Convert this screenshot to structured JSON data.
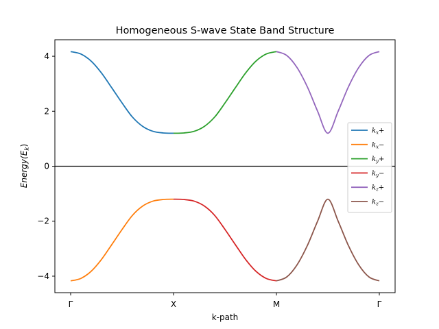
{
  "chart_data": {
    "type": "line",
    "title": "Homogeneous S-wave State Band Structure",
    "xlabel": "k-path",
    "ylabel": "Energy(E",
    "ylabel_sub": "k",
    "ylabel_close": ")",
    "xlim": [
      0,
      3
    ],
    "ylim": [
      -4.6,
      4.6
    ],
    "yticks": [
      -4,
      -2,
      0,
      2,
      4
    ],
    "ytick_labels": [
      "−4",
      "−2",
      "0",
      "2",
      "4"
    ],
    "xticks": [
      0,
      1,
      2,
      3
    ],
    "xtick_labels": [
      "Γ",
      "X",
      "M",
      "Γ"
    ],
    "zero_line": true,
    "legend_position": "center-right",
    "series": [
      {
        "name": "kx+",
        "legend_base": "k",
        "legend_sub": "x",
        "legend_sign": "+",
        "color": "#1f77b4",
        "x": [
          0,
          0.1,
          0.2,
          0.3,
          0.4,
          0.5,
          0.6,
          0.7,
          0.8,
          0.9,
          1.0
        ],
        "y": [
          4.17,
          4.08,
          3.82,
          3.39,
          2.85,
          2.3,
          1.79,
          1.45,
          1.27,
          1.21,
          1.2
        ]
      },
      {
        "name": "kx-",
        "legend_base": "k",
        "legend_sub": "x",
        "legend_sign": "−",
        "color": "#ff7f0e",
        "x": [
          0,
          0.1,
          0.2,
          0.3,
          0.4,
          0.5,
          0.6,
          0.7,
          0.8,
          0.9,
          1.0
        ],
        "y": [
          -4.17,
          -4.08,
          -3.82,
          -3.39,
          -2.85,
          -2.3,
          -1.79,
          -1.45,
          -1.27,
          -1.21,
          -1.2
        ]
      },
      {
        "name": "ky+",
        "legend_base": "k",
        "legend_sub": "y",
        "legend_sign": "+",
        "color": "#2ca02c",
        "x": [
          1.0,
          1.1,
          1.2,
          1.3,
          1.4,
          1.5,
          1.6,
          1.7,
          1.8,
          1.9,
          2.0
        ],
        "y": [
          1.2,
          1.21,
          1.27,
          1.45,
          1.79,
          2.3,
          2.85,
          3.39,
          3.82,
          4.08,
          4.17
        ]
      },
      {
        "name": "ky-",
        "legend_base": "k",
        "legend_sub": "y",
        "legend_sign": "−",
        "color": "#d62728",
        "x": [
          1.0,
          1.1,
          1.2,
          1.3,
          1.4,
          1.5,
          1.6,
          1.7,
          1.8,
          1.9,
          2.0
        ],
        "y": [
          -1.2,
          -1.21,
          -1.27,
          -1.45,
          -1.79,
          -2.3,
          -2.85,
          -3.39,
          -3.82,
          -4.08,
          -4.17
        ]
      },
      {
        "name": "kz+",
        "legend_base": "k",
        "legend_sub": "z",
        "legend_sign": "+",
        "color": "#9467bd",
        "x": [
          2.0,
          2.1,
          2.2,
          2.3,
          2.4,
          2.5,
          2.6,
          2.7,
          2.8,
          2.9,
          3.0
        ],
        "y": [
          4.17,
          4.03,
          3.59,
          2.89,
          2.0,
          1.2,
          2.0,
          2.89,
          3.59,
          4.03,
          4.17
        ]
      },
      {
        "name": "kz-",
        "legend_base": "k",
        "legend_sub": "z",
        "legend_sign": "−",
        "color": "#8c564b",
        "x": [
          2.0,
          2.1,
          2.2,
          2.3,
          2.4,
          2.5,
          2.6,
          2.7,
          2.8,
          2.9,
          3.0
        ],
        "y": [
          -4.17,
          -4.03,
          -3.59,
          -2.89,
          -2.0,
          -1.2,
          -2.0,
          -2.89,
          -3.59,
          -4.03,
          -4.17
        ]
      }
    ]
  }
}
